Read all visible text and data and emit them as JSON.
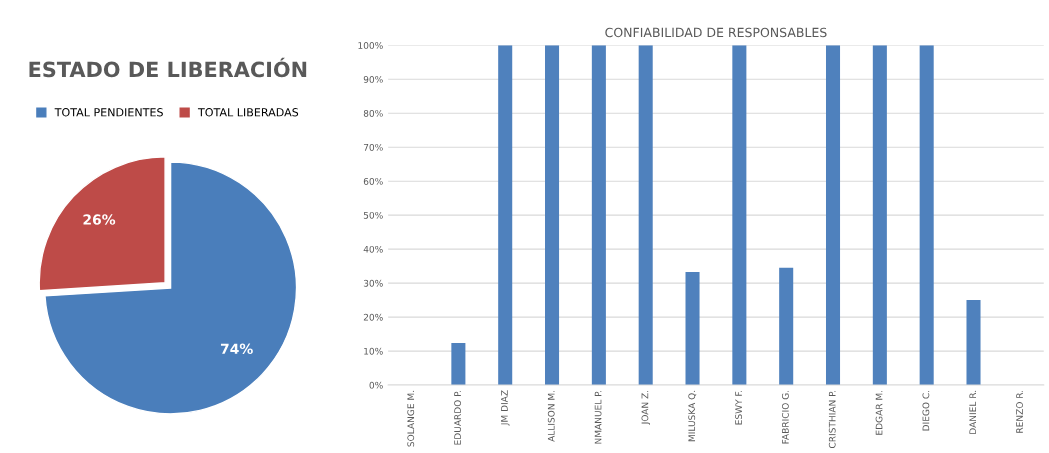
{
  "chart_data": [
    {
      "type": "pie",
      "title": "ESTADO DE LIBERACIÓN",
      "categories": [
        "TOTAL PENDIENTES",
        "TOTAL LIBERADAS"
      ],
      "values": [
        74,
        26
      ],
      "colors": [
        "#4a7ebb",
        "#be4b48"
      ],
      "value_labels": [
        "74%",
        "26%"
      ],
      "legend": "top"
    },
    {
      "type": "bar",
      "title": "CONFIABILIDAD DE RESPONSABLES",
      "categories": [
        "SOLANGE M.",
        "EDUARDO P.",
        "JM DIAZ",
        "ALLISON M.",
        "NMANUEL P.",
        "JOAN Z.",
        "MILUSKA Q.",
        "ESWY F.",
        "FABRICIO G.",
        "CRISTHIAN P.",
        "EDGAR M.",
        "DIEGO C.",
        "DANIEL R.",
        "RENZO R."
      ],
      "series": [
        {
          "color": "#4f81bd",
          "values": [
            0,
            12.4,
            100,
            100,
            100,
            100,
            33.3,
            100,
            34.5,
            100,
            100,
            100,
            25,
            0
          ]
        }
      ],
      "ylim": [
        0,
        100
      ],
      "yticks": [
        {
          "value": 0,
          "label": "0%"
        },
        {
          "value": 10,
          "label": "10%"
        },
        {
          "value": 20,
          "label": "20%"
        },
        {
          "value": 30,
          "label": "30%"
        },
        {
          "value": 40,
          "label": "40%"
        },
        {
          "value": 50,
          "label": "50%"
        },
        {
          "value": 60,
          "label": "60%"
        },
        {
          "value": 70,
          "label": "70%"
        },
        {
          "value": 80,
          "label": "80%"
        },
        {
          "value": 90,
          "label": "90%"
        },
        {
          "value": 100,
          "label": "100%"
        }
      ],
      "grid": "y",
      "legend": false
    }
  ]
}
